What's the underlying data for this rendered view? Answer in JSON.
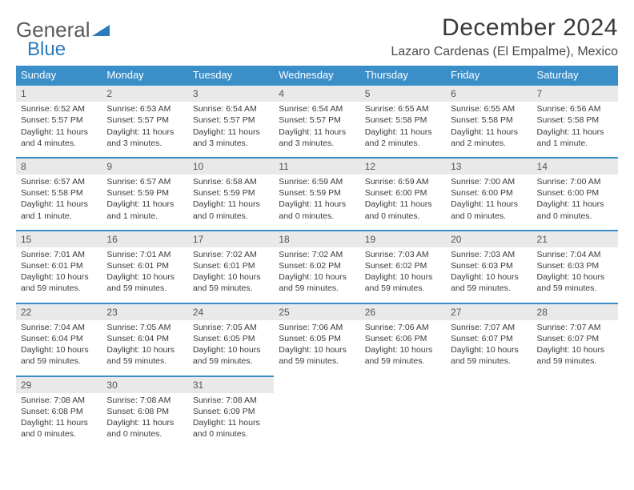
{
  "logo": {
    "text1": "General",
    "text2": "Blue"
  },
  "title": "December 2024",
  "location": "Lazaro Cardenas (El Empalme), Mexico",
  "colors": {
    "header_bg": "#3b8fc9",
    "header_text": "#ffffff",
    "daynum_bg": "#e9e9e9",
    "daynum_border": "#3b8fc9",
    "body_text": "#3a3a3a",
    "logo_blue": "#2a7bbd",
    "logo_gray": "#5a5a5a",
    "page_bg": "#ffffff"
  },
  "typography": {
    "title_fontsize": 30,
    "location_fontsize": 16,
    "dayheader_fontsize": 13,
    "daynum_fontsize": 12,
    "body_fontsize": 10.5,
    "font_family": "Arial"
  },
  "weekdays": [
    "Sunday",
    "Monday",
    "Tuesday",
    "Wednesday",
    "Thursday",
    "Friday",
    "Saturday"
  ],
  "days": [
    {
      "n": "1",
      "sr": "Sunrise: 6:52 AM",
      "ss": "Sunset: 5:57 PM",
      "dl": "Daylight: 11 hours and 4 minutes."
    },
    {
      "n": "2",
      "sr": "Sunrise: 6:53 AM",
      "ss": "Sunset: 5:57 PM",
      "dl": "Daylight: 11 hours and 3 minutes."
    },
    {
      "n": "3",
      "sr": "Sunrise: 6:54 AM",
      "ss": "Sunset: 5:57 PM",
      "dl": "Daylight: 11 hours and 3 minutes."
    },
    {
      "n": "4",
      "sr": "Sunrise: 6:54 AM",
      "ss": "Sunset: 5:57 PM",
      "dl": "Daylight: 11 hours and 3 minutes."
    },
    {
      "n": "5",
      "sr": "Sunrise: 6:55 AM",
      "ss": "Sunset: 5:58 PM",
      "dl": "Daylight: 11 hours and 2 minutes."
    },
    {
      "n": "6",
      "sr": "Sunrise: 6:55 AM",
      "ss": "Sunset: 5:58 PM",
      "dl": "Daylight: 11 hours and 2 minutes."
    },
    {
      "n": "7",
      "sr": "Sunrise: 6:56 AM",
      "ss": "Sunset: 5:58 PM",
      "dl": "Daylight: 11 hours and 1 minute."
    },
    {
      "n": "8",
      "sr": "Sunrise: 6:57 AM",
      "ss": "Sunset: 5:58 PM",
      "dl": "Daylight: 11 hours and 1 minute."
    },
    {
      "n": "9",
      "sr": "Sunrise: 6:57 AM",
      "ss": "Sunset: 5:59 PM",
      "dl": "Daylight: 11 hours and 1 minute."
    },
    {
      "n": "10",
      "sr": "Sunrise: 6:58 AM",
      "ss": "Sunset: 5:59 PM",
      "dl": "Daylight: 11 hours and 0 minutes."
    },
    {
      "n": "11",
      "sr": "Sunrise: 6:59 AM",
      "ss": "Sunset: 5:59 PM",
      "dl": "Daylight: 11 hours and 0 minutes."
    },
    {
      "n": "12",
      "sr": "Sunrise: 6:59 AM",
      "ss": "Sunset: 6:00 PM",
      "dl": "Daylight: 11 hours and 0 minutes."
    },
    {
      "n": "13",
      "sr": "Sunrise: 7:00 AM",
      "ss": "Sunset: 6:00 PM",
      "dl": "Daylight: 11 hours and 0 minutes."
    },
    {
      "n": "14",
      "sr": "Sunrise: 7:00 AM",
      "ss": "Sunset: 6:00 PM",
      "dl": "Daylight: 11 hours and 0 minutes."
    },
    {
      "n": "15",
      "sr": "Sunrise: 7:01 AM",
      "ss": "Sunset: 6:01 PM",
      "dl": "Daylight: 10 hours and 59 minutes."
    },
    {
      "n": "16",
      "sr": "Sunrise: 7:01 AM",
      "ss": "Sunset: 6:01 PM",
      "dl": "Daylight: 10 hours and 59 minutes."
    },
    {
      "n": "17",
      "sr": "Sunrise: 7:02 AM",
      "ss": "Sunset: 6:01 PM",
      "dl": "Daylight: 10 hours and 59 minutes."
    },
    {
      "n": "18",
      "sr": "Sunrise: 7:02 AM",
      "ss": "Sunset: 6:02 PM",
      "dl": "Daylight: 10 hours and 59 minutes."
    },
    {
      "n": "19",
      "sr": "Sunrise: 7:03 AM",
      "ss": "Sunset: 6:02 PM",
      "dl": "Daylight: 10 hours and 59 minutes."
    },
    {
      "n": "20",
      "sr": "Sunrise: 7:03 AM",
      "ss": "Sunset: 6:03 PM",
      "dl": "Daylight: 10 hours and 59 minutes."
    },
    {
      "n": "21",
      "sr": "Sunrise: 7:04 AM",
      "ss": "Sunset: 6:03 PM",
      "dl": "Daylight: 10 hours and 59 minutes."
    },
    {
      "n": "22",
      "sr": "Sunrise: 7:04 AM",
      "ss": "Sunset: 6:04 PM",
      "dl": "Daylight: 10 hours and 59 minutes."
    },
    {
      "n": "23",
      "sr": "Sunrise: 7:05 AM",
      "ss": "Sunset: 6:04 PM",
      "dl": "Daylight: 10 hours and 59 minutes."
    },
    {
      "n": "24",
      "sr": "Sunrise: 7:05 AM",
      "ss": "Sunset: 6:05 PM",
      "dl": "Daylight: 10 hours and 59 minutes."
    },
    {
      "n": "25",
      "sr": "Sunrise: 7:06 AM",
      "ss": "Sunset: 6:05 PM",
      "dl": "Daylight: 10 hours and 59 minutes."
    },
    {
      "n": "26",
      "sr": "Sunrise: 7:06 AM",
      "ss": "Sunset: 6:06 PM",
      "dl": "Daylight: 10 hours and 59 minutes."
    },
    {
      "n": "27",
      "sr": "Sunrise: 7:07 AM",
      "ss": "Sunset: 6:07 PM",
      "dl": "Daylight: 10 hours and 59 minutes."
    },
    {
      "n": "28",
      "sr": "Sunrise: 7:07 AM",
      "ss": "Sunset: 6:07 PM",
      "dl": "Daylight: 10 hours and 59 minutes."
    },
    {
      "n": "29",
      "sr": "Sunrise: 7:08 AM",
      "ss": "Sunset: 6:08 PM",
      "dl": "Daylight: 11 hours and 0 minutes."
    },
    {
      "n": "30",
      "sr": "Sunrise: 7:08 AM",
      "ss": "Sunset: 6:08 PM",
      "dl": "Daylight: 11 hours and 0 minutes."
    },
    {
      "n": "31",
      "sr": "Sunrise: 7:08 AM",
      "ss": "Sunset: 6:09 PM",
      "dl": "Daylight: 11 hours and 0 minutes."
    }
  ],
  "layout": {
    "columns": 7,
    "rows": 5,
    "start_weekday_index": 0,
    "trailing_empty": 4
  }
}
